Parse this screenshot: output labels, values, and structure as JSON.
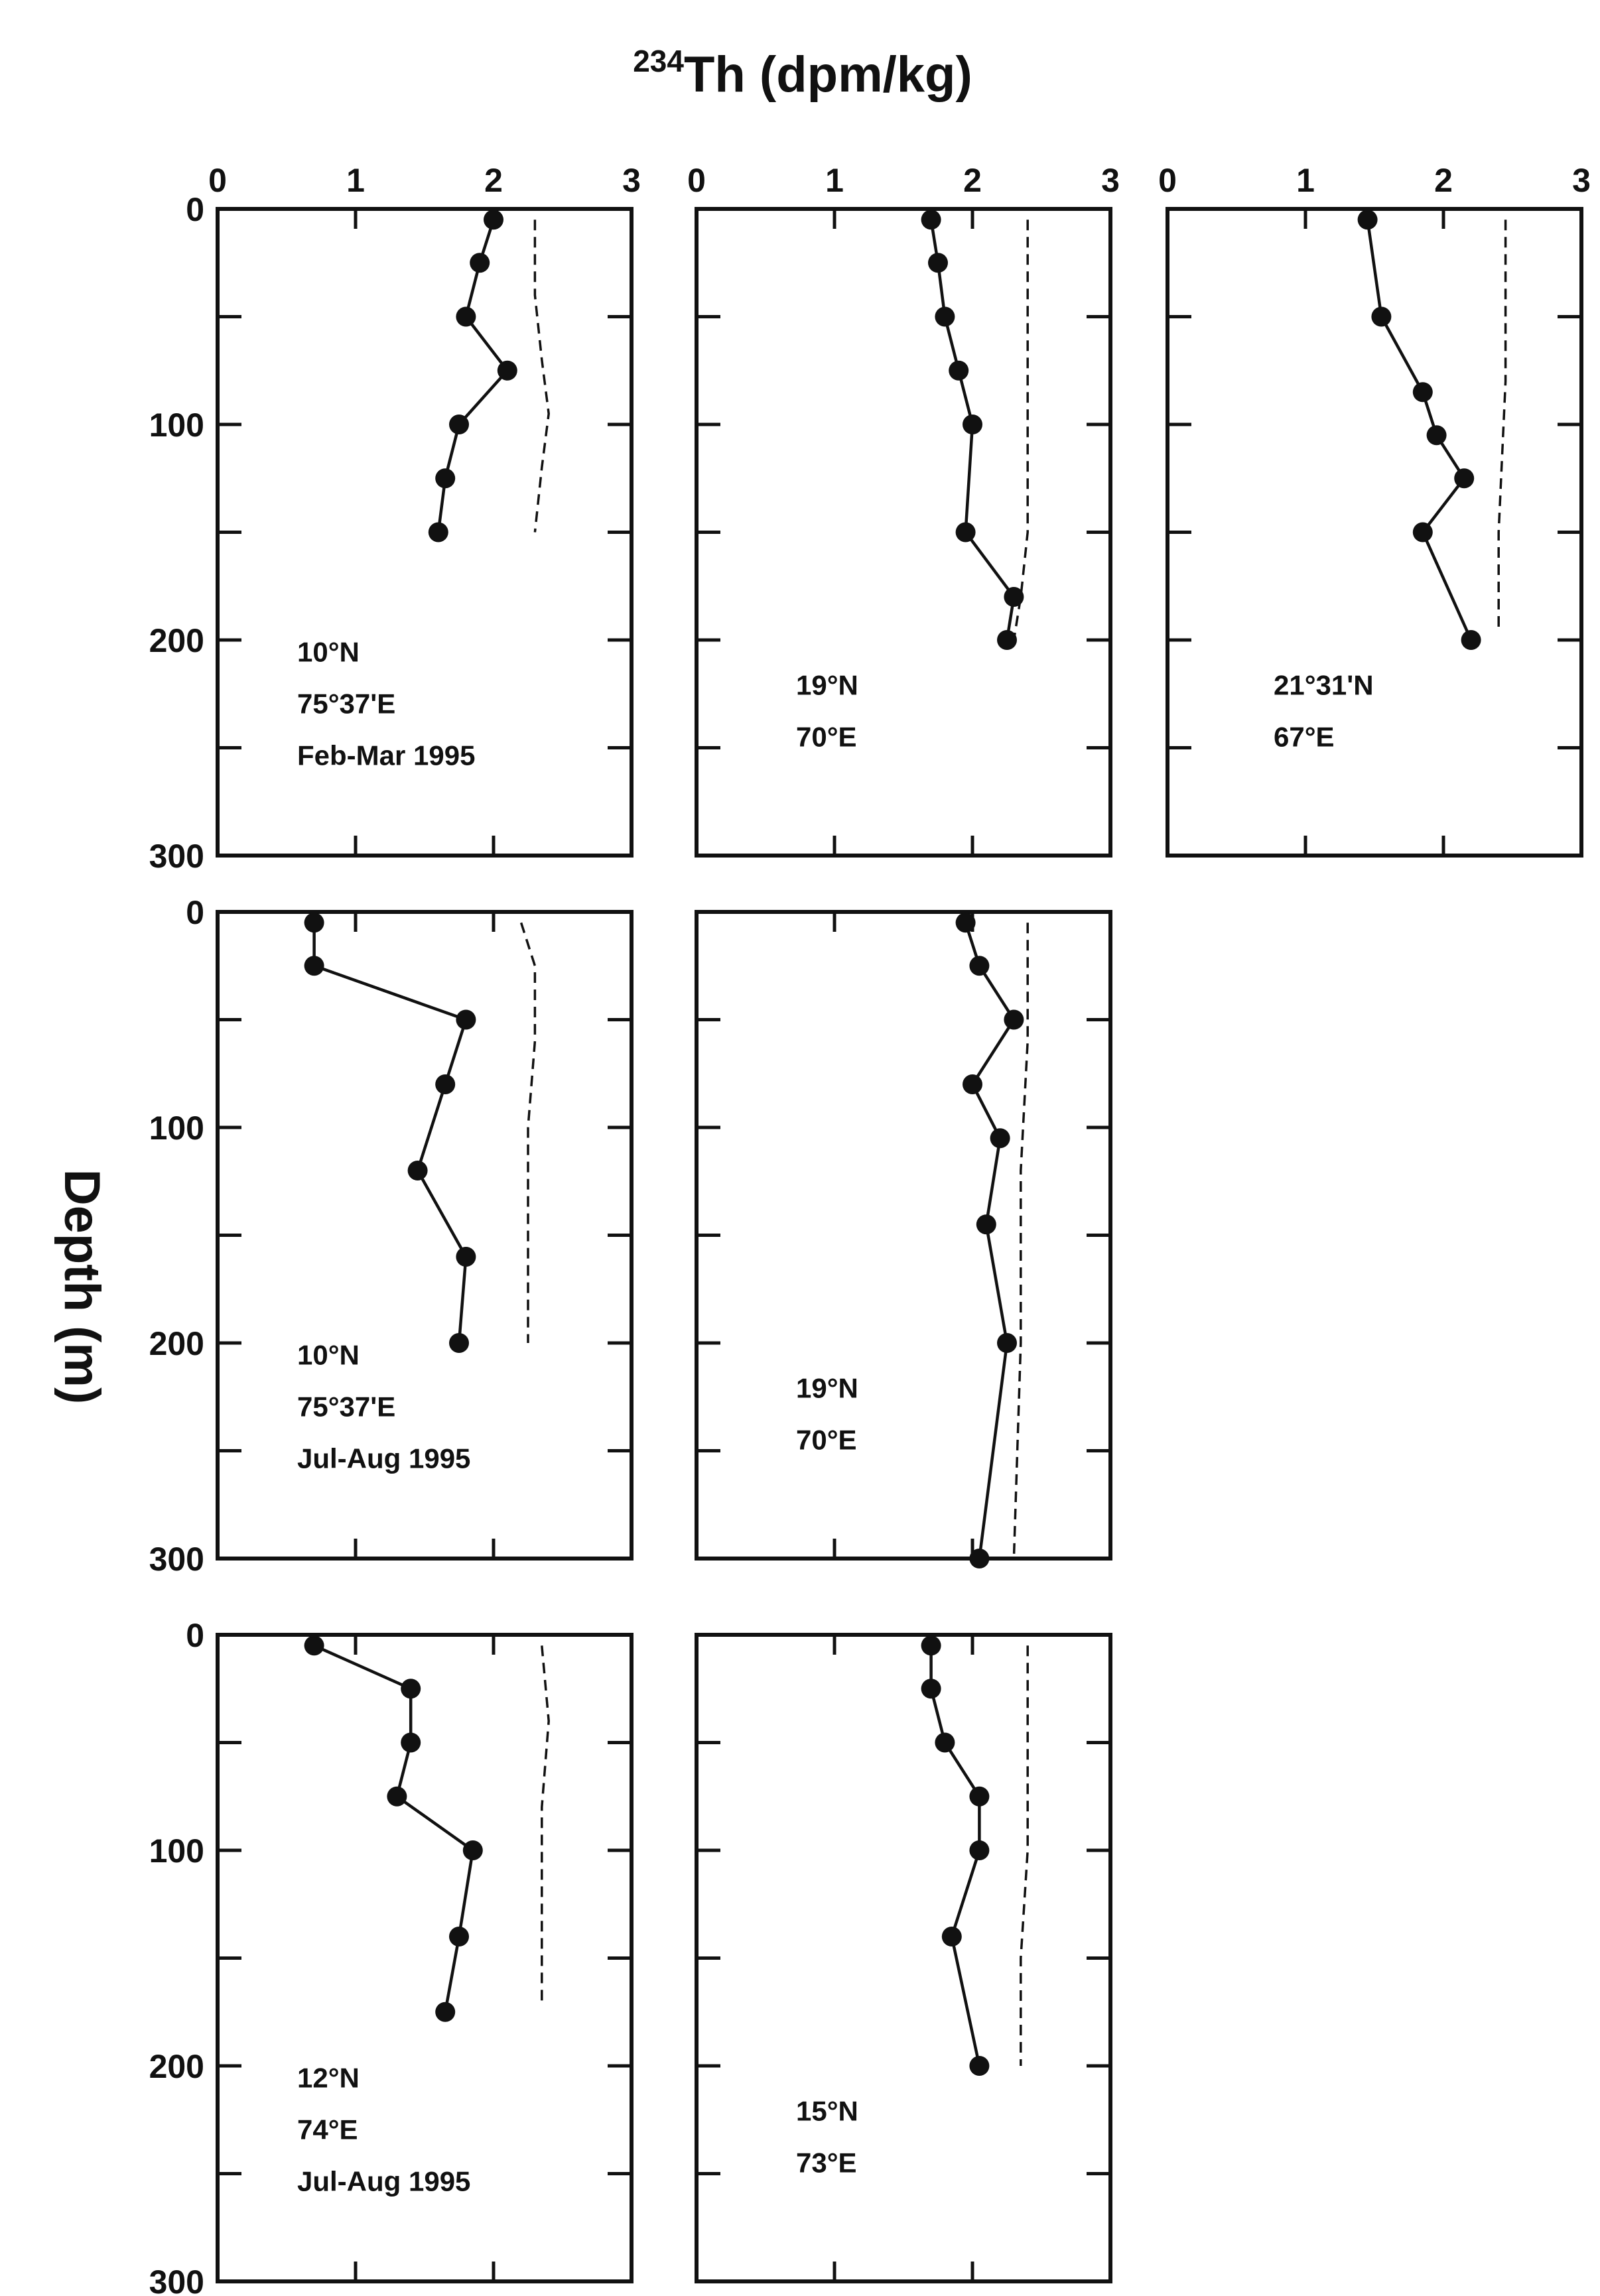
{
  "chart_data": {
    "type": "scatter",
    "title": "234Th (dpm/kg)",
    "title_parts": {
      "superscript": "234",
      "main": "Th (dpm/kg)"
    },
    "ylabel": "Depth (m)",
    "xlim": [
      0,
      3
    ],
    "ylim": [
      300,
      0
    ],
    "x_ticks": [
      "0",
      "1",
      "2",
      "3"
    ],
    "y_ticks": [
      "0",
      "100",
      "200",
      "300"
    ],
    "panels": [
      {
        "id": "r1c1",
        "annotation": [
          "10°N",
          "75°37'E",
          "Feb-Mar 1995"
        ],
        "points": [
          [
            2.0,
            5
          ],
          [
            1.9,
            25
          ],
          [
            1.8,
            50
          ],
          [
            2.1,
            75
          ],
          [
            1.75,
            100
          ],
          [
            1.65,
            125
          ],
          [
            1.6,
            150
          ]
        ],
        "dashed": [
          [
            2.3,
            5
          ],
          [
            2.3,
            40
          ],
          [
            2.35,
            70
          ],
          [
            2.4,
            95
          ],
          [
            2.35,
            120
          ],
          [
            2.3,
            150
          ]
        ]
      },
      {
        "id": "r1c2",
        "annotation": [
          "19°N",
          "70°E"
        ],
        "points": [
          [
            1.7,
            5
          ],
          [
            1.75,
            25
          ],
          [
            1.8,
            50
          ],
          [
            1.9,
            75
          ],
          [
            2.0,
            100
          ],
          [
            1.95,
            150
          ],
          [
            2.3,
            180
          ],
          [
            2.25,
            200
          ]
        ],
        "dashed": [
          [
            2.4,
            5
          ],
          [
            2.4,
            80
          ],
          [
            2.4,
            150
          ],
          [
            2.35,
            180
          ],
          [
            2.3,
            200
          ]
        ]
      },
      {
        "id": "r1c3",
        "annotation": [
          "21°31'N",
          "67°E"
        ],
        "points": [
          [
            1.45,
            5
          ],
          [
            1.55,
            50
          ],
          [
            1.85,
            85
          ],
          [
            1.95,
            105
          ],
          [
            2.15,
            125
          ],
          [
            1.85,
            150
          ],
          [
            2.2,
            200
          ]
        ],
        "dashed": [
          [
            2.45,
            5
          ],
          [
            2.45,
            80
          ],
          [
            2.4,
            150
          ],
          [
            2.4,
            195
          ]
        ]
      },
      {
        "id": "r2c1",
        "annotation": [
          "10°N",
          "75°37'E",
          "Jul-Aug 1995"
        ],
        "points": [
          [
            0.7,
            5
          ],
          [
            0.7,
            25
          ],
          [
            1.8,
            50
          ],
          [
            1.65,
            80
          ],
          [
            1.45,
            120
          ],
          [
            1.8,
            160
          ],
          [
            1.75,
            200
          ]
        ],
        "dashed": [
          [
            2.2,
            5
          ],
          [
            2.3,
            25
          ],
          [
            2.3,
            60
          ],
          [
            2.25,
            100
          ],
          [
            2.25,
            150
          ],
          [
            2.25,
            200
          ]
        ]
      },
      {
        "id": "r2c2",
        "annotation": [
          "19°N",
          "70°E"
        ],
        "points": [
          [
            1.95,
            5
          ],
          [
            2.05,
            25
          ],
          [
            2.3,
            50
          ],
          [
            2.0,
            80
          ],
          [
            2.2,
            105
          ],
          [
            2.1,
            145
          ],
          [
            2.25,
            200
          ],
          [
            2.05,
            300
          ]
        ],
        "dashed": [
          [
            2.4,
            5
          ],
          [
            2.4,
            60
          ],
          [
            2.35,
            120
          ],
          [
            2.35,
            200
          ],
          [
            2.3,
            300
          ]
        ]
      },
      {
        "id": "r3c1",
        "annotation": [
          "12°N",
          "74°E",
          "Jul-Aug 1995"
        ],
        "points": [
          [
            0.7,
            5
          ],
          [
            1.4,
            25
          ],
          [
            1.4,
            50
          ],
          [
            1.3,
            75
          ],
          [
            1.85,
            100
          ],
          [
            1.75,
            140
          ],
          [
            1.65,
            175
          ]
        ],
        "dashed": [
          [
            2.35,
            5
          ],
          [
            2.4,
            40
          ],
          [
            2.35,
            80
          ],
          [
            2.35,
            120
          ],
          [
            2.35,
            170
          ]
        ]
      },
      {
        "id": "r3c2",
        "annotation": [
          "15°N",
          "73°E"
        ],
        "points": [
          [
            1.7,
            5
          ],
          [
            1.7,
            25
          ],
          [
            1.8,
            50
          ],
          [
            2.05,
            75
          ],
          [
            2.05,
            100
          ],
          [
            1.85,
            140
          ],
          [
            2.05,
            200
          ]
        ],
        "dashed": [
          [
            2.4,
            5
          ],
          [
            2.4,
            50
          ],
          [
            2.4,
            100
          ],
          [
            2.35,
            150
          ],
          [
            2.35,
            200
          ]
        ]
      }
    ]
  }
}
